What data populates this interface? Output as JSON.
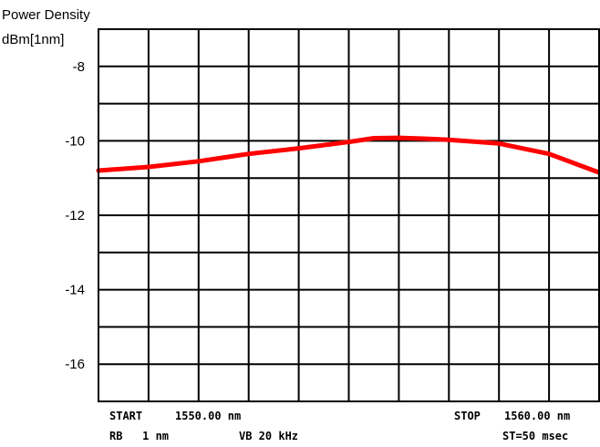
{
  "chart_data": {
    "type": "line",
    "ylabel_line1": "Power Density",
    "ylabel_line2": "dBm[1nm]",
    "ylim": [
      -17,
      -7
    ],
    "y_tick_values": [
      -8,
      -10,
      -12,
      -14,
      -16
    ],
    "y_tick_labels": [
      "-8",
      "-10",
      "-12",
      "-14",
      "-16"
    ],
    "xlim": [
      1550.0,
      1560.0
    ],
    "grid": true,
    "series": [
      {
        "color": "#ff0000",
        "x": [
          1550.0,
          1551.0,
          1552.0,
          1553.0,
          1554.0,
          1555.0,
          1555.5,
          1556.0,
          1556.5,
          1557.0,
          1558.0,
          1559.0,
          1560.0
        ],
        "values": [
          -10.8,
          -10.7,
          -10.55,
          -10.35,
          -10.2,
          -10.03,
          -9.93,
          -9.92,
          -9.94,
          -9.97,
          -10.07,
          -10.35,
          -10.85
        ]
      }
    ],
    "footer": {
      "start_label": "START",
      "start_value": "1550.00 nm",
      "stop_label": "STOP",
      "stop_value": "1560.00 nm",
      "rb": "RB   1 nm",
      "vb": "VB 20 kHz",
      "st": "ST=50 msec"
    }
  }
}
